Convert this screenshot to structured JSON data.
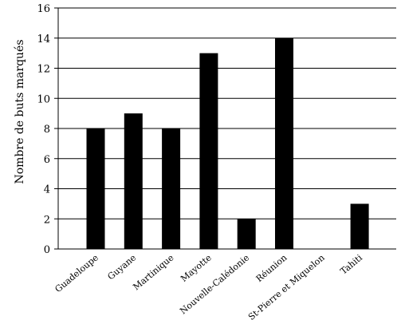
{
  "chart_data": {
    "type": "bar",
    "ylabel": "Nombre de buts marqués",
    "ylim": [
      0,
      16
    ],
    "yticks": [
      0,
      2,
      4,
      6,
      8,
      10,
      12,
      14,
      16
    ],
    "grid": true,
    "categories": [
      "Guadeloupe",
      "Guyane",
      "Martinique",
      "Mayotte",
      "Nouvelle-Calédonie",
      "Réunion",
      "St-Pierre et Miquelon",
      "Tahiti"
    ],
    "values": [
      8,
      9,
      8,
      13,
      2,
      14,
      0,
      3
    ],
    "colors": {
      "bar": "#000000",
      "grid": "#000000"
    }
  }
}
